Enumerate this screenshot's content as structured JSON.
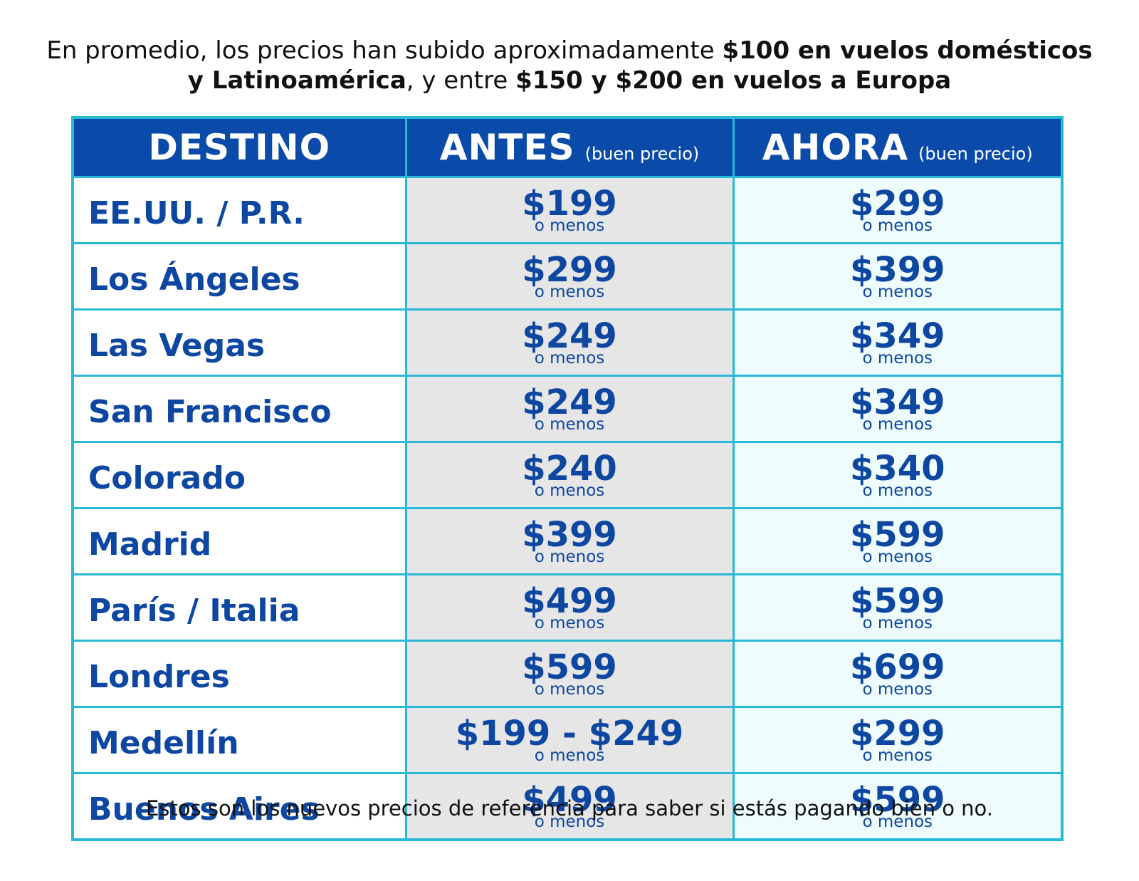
{
  "intro": {
    "segments": [
      {
        "text": "En promedio, los precios han subido aproximadamente ",
        "bold": false
      },
      {
        "text": "$100 en vuelos domésticos y Latinoamérica",
        "bold": true
      },
      {
        "text": ", y entre ",
        "bold": false
      },
      {
        "text": "$150 y $200 en vuelos a Europa",
        "bold": true
      }
    ]
  },
  "table": {
    "header": [
      {
        "main": "DESTINO"
      },
      {
        "main": "ANTES",
        "note": "(buen precio)"
      },
      {
        "main": "AHORA",
        "note": "(buen precio)"
      }
    ],
    "rows": [
      {
        "destino": "EE.UU. / P.R.",
        "antes": {
          "price": "$199",
          "note": "o menos"
        },
        "ahora": {
          "price": "$299",
          "note": "o menos"
        }
      },
      {
        "destino": "Los Ángeles",
        "antes": {
          "price": "$299",
          "note": "o menos"
        },
        "ahora": {
          "price": "$399",
          "note": "o menos"
        }
      },
      {
        "destino": "Las Vegas",
        "antes": {
          "price": "$249",
          "note": "o menos"
        },
        "ahora": {
          "price": "$349",
          "note": "o menos"
        }
      },
      {
        "destino": "San Francisco",
        "antes": {
          "price": "$249",
          "note": "o menos"
        },
        "ahora": {
          "price": "$349",
          "note": "o menos"
        }
      },
      {
        "destino": "Colorado",
        "antes": {
          "price": "$240",
          "note": "o menos"
        },
        "ahora": {
          "price": "$340",
          "note": "o menos"
        }
      },
      {
        "destino": "Madrid",
        "antes": {
          "price": "$399",
          "note": "o menos"
        },
        "ahora": {
          "price": "$599",
          "note": "o menos"
        }
      },
      {
        "destino": "París / Italia",
        "antes": {
          "price": "$499",
          "note": "o menos"
        },
        "ahora": {
          "price": "$599",
          "note": "o menos"
        }
      },
      {
        "destino": "Londres",
        "antes": {
          "price": "$599",
          "note": "o menos"
        },
        "ahora": {
          "price": "$699",
          "note": "o menos"
        }
      },
      {
        "destino": "Medellín",
        "antes": {
          "price": "$199 - $249",
          "note": "o menos"
        },
        "ahora": {
          "price": "$299",
          "note": "o menos"
        }
      },
      {
        "destino": "Buenos Aires",
        "antes": {
          "price": "$499",
          "note": "o menos"
        },
        "ahora": {
          "price": "$599",
          "note": "o menos"
        }
      }
    ]
  },
  "footer": "Estos son los nuevos precios de referencia para saber si estás pagando bien o no."
}
